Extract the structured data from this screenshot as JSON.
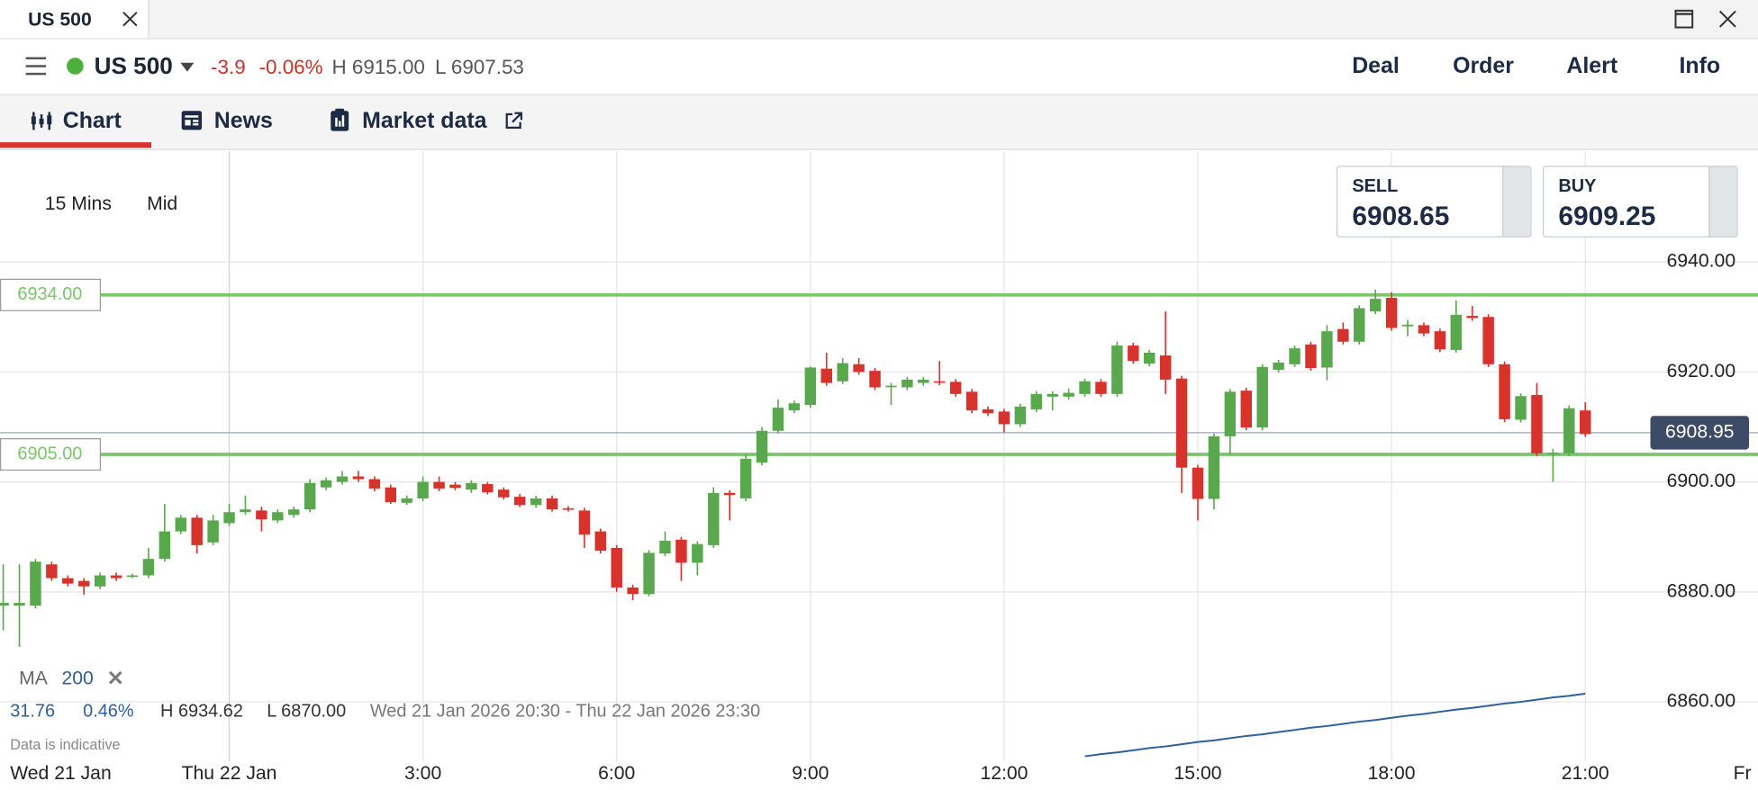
{
  "window": {
    "tab_title": "US 500"
  },
  "header": {
    "instrument": "US 500",
    "change": "-3.9",
    "change_pct": "-0.06%",
    "high": "H 6915.00",
    "low": "L 6907.53",
    "actions": [
      "Deal",
      "Order",
      "Alert",
      "Info"
    ]
  },
  "tabs": [
    "Chart",
    "News",
    "Market data"
  ],
  "toolbar": {
    "interval": "15 Mins",
    "price_type": "Mid"
  },
  "quote": {
    "sell_label": "SELL",
    "sell": "6908.65",
    "buy_label": "BUY",
    "buy": "6909.25"
  },
  "indicator": {
    "name": "MA",
    "period": "200"
  },
  "stats": {
    "change": "31.76",
    "change_pct": "0.46%",
    "high": "H 6934.62",
    "low": "L 6870.00",
    "range": "Wed 21 Jan 2026 20:30 - Thu 22 Jan 2026 23:30",
    "note": "Data is indicative"
  },
  "chart_data": {
    "type": "candlestick",
    "categories": [
      null,
      null,
      null,
      null,
      null,
      null,
      null,
      null,
      null,
      null,
      null,
      null,
      null,
      null,
      null,
      null,
      null,
      null,
      null,
      null,
      null,
      null,
      null,
      null,
      null,
      null,
      null,
      null,
      null,
      null,
      null,
      null,
      null,
      null,
      null,
      null,
      null,
      null,
      null,
      null,
      null,
      null,
      null,
      null,
      null,
      null,
      null,
      null,
      null,
      null,
      null,
      null,
      null,
      null,
      null,
      null,
      null,
      null,
      null,
      null,
      null,
      null,
      null,
      null,
      null,
      null,
      null,
      null,
      null,
      null,
      null,
      null,
      null,
      null,
      null,
      null,
      null,
      null,
      null,
      null,
      null,
      null,
      null,
      null,
      null,
      null,
      null,
      null,
      null,
      null,
      null,
      null,
      null,
      null,
      null,
      null,
      null,
      null,
      null
    ],
    "open": [
      6877.5,
      6877.5,
      6877.5,
      6885,
      6882.5,
      6882,
      6881,
      6883,
      6882.8,
      6883,
      6886,
      6891,
      6893.5,
      6889,
      6892.5,
      6894.5,
      6894.8,
      6893,
      6894,
      6895,
      6899,
      6900,
      6901,
      6900.5,
      6899,
      6896.2,
      6897,
      6900,
      6899.5,
      6898.6,
      6899.6,
      6898.6,
      6897.3,
      6895.8,
      6897,
      6895.2,
      6894.8,
      6891,
      6888,
      6880.8,
      6879.6,
      6887,
      6889.5,
      6885.3,
      6888.5,
      6898,
      6897,
      6903.5,
      6909.3,
      6913,
      6914,
      6920.6,
      6918.3,
      6921.4,
      6920.2,
      6917.4,
      6917.2,
      6918,
      6918.3,
      6918.2,
      6916.4,
      6913.2,
      6912.8,
      6910.5,
      6913.2,
      6915.5,
      6915.5,
      6916,
      6918.2,
      6916,
      6924.8,
      6921.5,
      6923,
      6918.8,
      6902.6,
      6896.9,
      6908.3,
      6916.6,
      6909.9,
      6920.4,
      6921.4,
      6925,
      6920.8,
      6927.8,
      6925.5,
      6931,
      6933.5,
      6928.3,
      6928.5,
      6927.4,
      6924,
      6930.2,
      6930,
      6921.4,
      6911.3,
      6915.8,
      6905.2,
      6905.2,
      6913
    ],
    "high": [
      6885,
      6885,
      6886,
      6885.5,
      6883,
      6882.5,
      6883.5,
      6883.5,
      6883.3,
      6888,
      6896,
      6894,
      6894,
      6894,
      6896,
      6897.5,
      6895.5,
      6895,
      6895.5,
      6900.5,
      6900.8,
      6902,
      6902,
      6901,
      6899.5,
      6897.5,
      6901,
      6901,
      6900,
      6900.3,
      6900,
      6899,
      6897.8,
      6897.5,
      6897.5,
      6895.6,
      6895.3,
      6891.5,
      6888.5,
      6881.3,
      6887.6,
      6891,
      6890,
      6889.2,
      6899,
      6898.5,
      6905,
      6910,
      6915,
      6914.8,
      6921,
      6923.5,
      6922.5,
      6922.5,
      6920.7,
      6918,
      6919.1,
      6919.1,
      6922,
      6918.7,
      6916.9,
      6913.7,
      6913.3,
      6914.2,
      6916.5,
      6916.5,
      6917,
      6918.8,
      6918.7,
      6925.5,
      6925.3,
      6924,
      6931,
      6919.3,
      6903.1,
      6908.8,
      6916.9,
      6917.1,
      6921.4,
      6922.2,
      6924.8,
      6925.5,
      6928.5,
      6929,
      6932.1,
      6935,
      6934.5,
      6929.5,
      6929,
      6927.9,
      6933,
      6932,
      6930.5,
      6921.9,
      6916.1,
      6918,
      6906,
      6913.9,
      6914.5
    ],
    "low": [
      6873,
      6870,
      6877,
      6882,
      6881,
      6879.5,
      6880.5,
      6882,
      6882.5,
      6882.5,
      6885.5,
      6890.5,
      6887,
      6888.5,
      6892,
      6894,
      6891,
      6892.5,
      6893.5,
      6894.5,
      6898.5,
      6899.5,
      6900,
      6898.3,
      6896,
      6895.8,
      6896.5,
      6898.3,
      6898.5,
      6898,
      6897.7,
      6896.8,
      6895.4,
      6895.3,
      6894.6,
      6894.6,
      6888,
      6887,
      6880,
      6878.5,
      6879.2,
      6886.5,
      6882,
      6883,
      6888,
      6893,
      6896.5,
      6903,
      6908.8,
      6912.5,
      6913.5,
      6917.5,
      6917.8,
      6919.5,
      6916.7,
      6914,
      6916.7,
      6917.5,
      6917.6,
      6915.5,
      6912.5,
      6912,
      6909,
      6910,
      6912.7,
      6913,
      6915,
      6915.5,
      6915.5,
      6915.5,
      6921.5,
      6921,
      6916,
      6898,
      6893,
      6895,
      6905,
      6909.4,
      6909.4,
      6919.9,
      6920.9,
      6920.2,
      6918.5,
      6925,
      6925,
      6930.5,
      6927.5,
      6926.5,
      6926.5,
      6923.6,
      6923.5,
      6929.3,
      6920.9,
      6910.9,
      6910.8,
      6904.7,
      6900,
      6904.7,
      6908.2
    ],
    "close": [
      6878,
      6878,
      6885.5,
      6882.5,
      6881.5,
      6881,
      6883,
      6882.5,
      6883,
      6886,
      6891,
      6893.5,
      6888.5,
      6893,
      6894.5,
      6895,
      6893.2,
      6894.5,
      6895,
      6899.8,
      6900.3,
      6901,
      6900.5,
      6898.8,
      6896.3,
      6897,
      6900,
      6898.8,
      6898.9,
      6899.8,
      6898.1,
      6897.2,
      6895.8,
      6897,
      6895,
      6895,
      6890.4,
      6887.5,
      6880.8,
      6879.6,
      6887.1,
      6889.3,
      6885.3,
      6888.7,
      6898,
      6897.6,
      6904.2,
      6909.3,
      6913.5,
      6914.3,
      6920.8,
      6918,
      6921.6,
      6920,
      6917.2,
      6917.5,
      6918.6,
      6918.6,
      6918.1,
      6916,
      6913,
      6912.5,
      6910.5,
      6913.7,
      6916,
      6916,
      6916.2,
      6918.3,
      6916,
      6924.8,
      6922,
      6923.5,
      6918.6,
      6902.6,
      6896.9,
      6908.3,
      6916.4,
      6909.9,
      6920.9,
      6921.7,
      6924.3,
      6920.7,
      6927.4,
      6925.5,
      6931.6,
      6933.3,
      6928,
      6928.6,
      6927,
      6924.1,
      6930.4,
      6929.8,
      6921.4,
      6911.4,
      6915.6,
      6905.2,
      6905.3,
      6913.4,
      6908.7
    ],
    "up_color": "#5aa84e",
    "down_color": "#d7322b",
    "ma": {
      "color": "#2f5f9e",
      "values": [
        null,
        null,
        null,
        null,
        null,
        null,
        null,
        null,
        null,
        null,
        null,
        null,
        null,
        null,
        null,
        null,
        null,
        null,
        null,
        null,
        null,
        null,
        null,
        null,
        null,
        null,
        null,
        null,
        null,
        null,
        null,
        null,
        null,
        null,
        null,
        null,
        null,
        null,
        null,
        null,
        null,
        null,
        null,
        null,
        null,
        null,
        null,
        null,
        null,
        null,
        null,
        null,
        null,
        null,
        null,
        null,
        null,
        null,
        null,
        null,
        null,
        null,
        null,
        null,
        null,
        null,
        null,
        6850.1,
        6850.5,
        6850.8,
        6851.2,
        6851.6,
        6851.9,
        6852.3,
        6852.7,
        6853.0,
        6853.4,
        6853.8,
        6854.1,
        6854.5,
        6854.9,
        6855.3,
        6855.6,
        6856.0,
        6856.4,
        6856.7,
        6857.1,
        6857.5,
        6857.8,
        6858.2,
        6858.6,
        6858.9,
        6859.3,
        6859.7,
        6860.0,
        6860.4,
        6860.8,
        6861.1,
        6861.5
      ]
    },
    "levels": [
      {
        "value": 6934,
        "label": "6934.00"
      },
      {
        "value": 6905,
        "label": "6905.00"
      }
    ],
    "level_color": "#7cc56d",
    "last_price": {
      "value": 6908.95,
      "label": "6908.95"
    },
    "xlim": [
      -0.2,
      108.7
    ],
    "ylim": [
      6844.03,
      6960.14
    ],
    "yticks": [
      {
        "value": 6940,
        "label": "6940.00"
      },
      {
        "value": 6920,
        "label": "6920.00"
      },
      {
        "value": 6900,
        "label": "6900.00"
      },
      {
        "value": 6880,
        "label": "6880.00"
      },
      {
        "value": 6860,
        "label": "6860.00"
      }
    ],
    "xticks": [
      {
        "value": 14,
        "label": "Thu 22 Jan"
      },
      {
        "value": 26,
        "label": "3:00"
      },
      {
        "value": 38,
        "label": "6:00"
      },
      {
        "value": 50,
        "label": "9:00"
      },
      {
        "value": 62,
        "label": "12:00"
      },
      {
        "value": 74,
        "label": "15:00"
      },
      {
        "value": 86,
        "label": "18:00"
      },
      {
        "value": 98,
        "label": "21:00"
      }
    ],
    "x_start_label": "Wed 21 Jan",
    "x_end_label": "Fr",
    "grid": true
  }
}
